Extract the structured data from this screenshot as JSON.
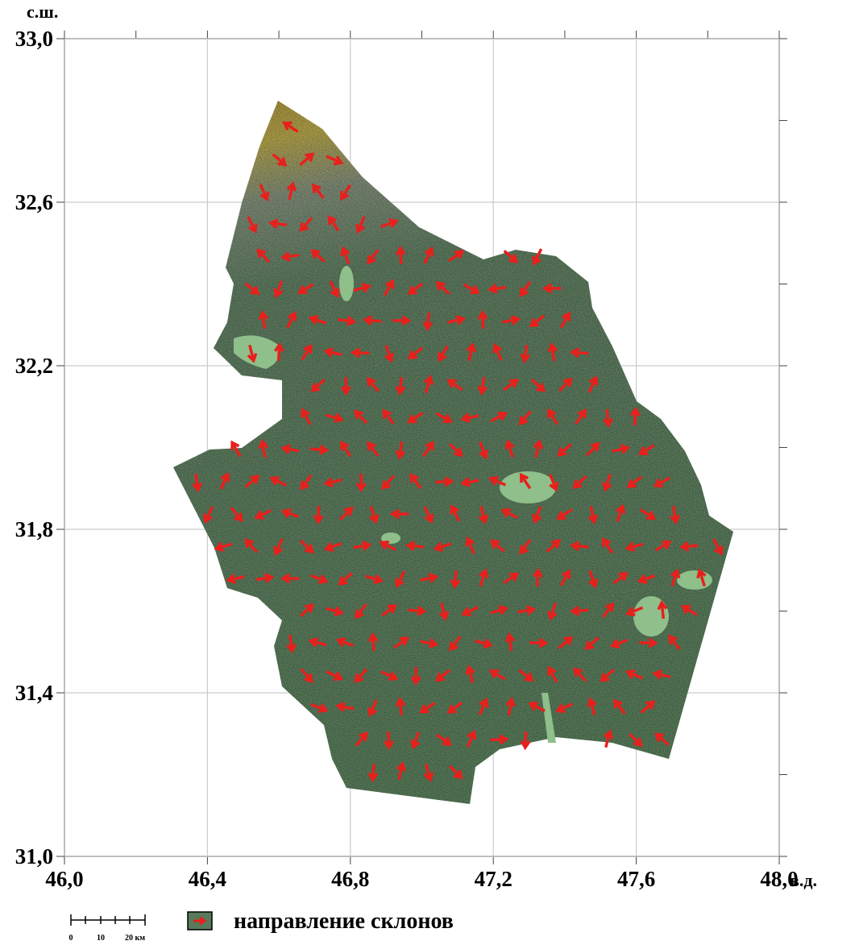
{
  "map": {
    "axes": {
      "y_label": "с.ш.",
      "x_label": "в.д.",
      "xlim": [
        46,
        48
      ],
      "ylim": [
        31,
        33
      ],
      "xticks": [
        {
          "value": 46,
          "label": "46,0"
        },
        {
          "value": 46.4,
          "label": "46,4"
        },
        {
          "value": 46.8,
          "label": "46,8"
        },
        {
          "value": 47.2,
          "label": "47,2"
        },
        {
          "value": 47.6,
          "label": "47,6"
        },
        {
          "value": 48,
          "label": "48,0"
        }
      ],
      "yticks": [
        {
          "value": 31,
          "label": "31,0"
        },
        {
          "value": 31.4,
          "label": "31,4"
        },
        {
          "value": 31.8,
          "label": "31,8"
        },
        {
          "value": 32.2,
          "label": "32,2"
        },
        {
          "value": 32.6,
          "label": "32,6"
        },
        {
          "value": 33,
          "label": "33,0"
        }
      ],
      "grid": true
    },
    "legend": {
      "label": "направление склонов"
    },
    "scale_bar": {
      "labels": [
        "0",
        "10",
        "20 км"
      ]
    }
  }
}
